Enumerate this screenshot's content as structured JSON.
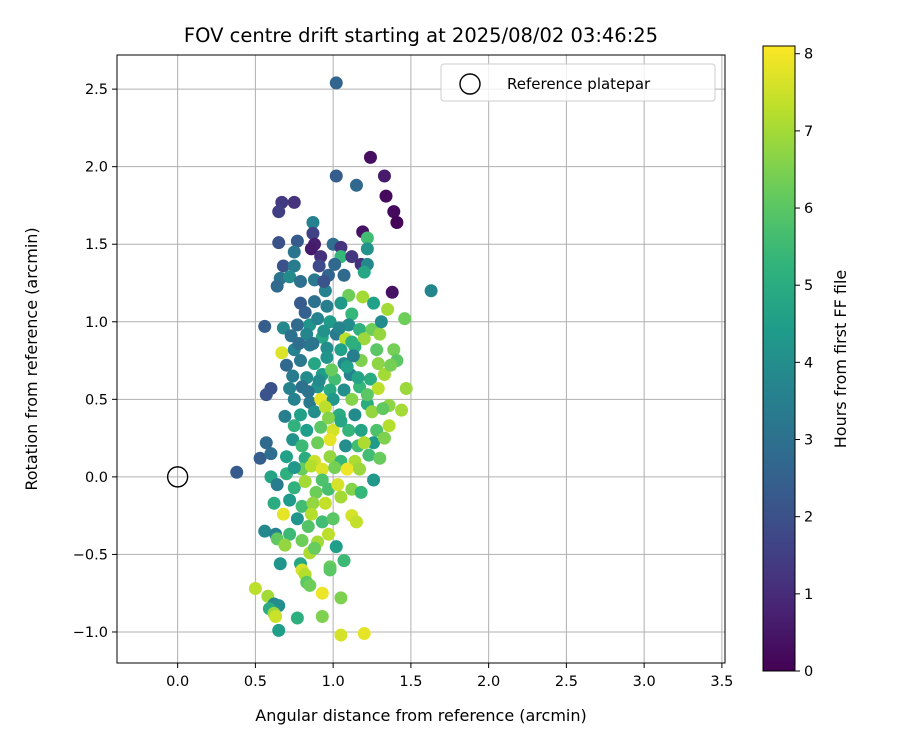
{
  "chart_data": {
    "type": "scatter",
    "title": "FOV centre drift starting at 2025/08/02 03:46:25",
    "xlabel": "Angular distance from reference (arcmin)",
    "ylabel": "Rotation from reference (arcmin)",
    "xlim": [
      -0.39,
      3.52
    ],
    "ylim": [
      -1.2,
      2.72
    ],
    "xticks": [
      0.0,
      0.5,
      1.0,
      1.5,
      2.0,
      2.5,
      3.0,
      3.5
    ],
    "xtick_labels": [
      "0.0",
      "0.5",
      "1.0",
      "1.5",
      "2.0",
      "2.5",
      "3.0",
      "3.5"
    ],
    "yticks": [
      -1.0,
      -0.5,
      0.0,
      0.5,
      1.0,
      1.5,
      2.0,
      2.5
    ],
    "ytick_labels": [
      "−1.0",
      "−0.5",
      "0.0",
      "0.5",
      "1.0",
      "1.5",
      "2.0",
      "2.5"
    ],
    "grid": true,
    "legend": {
      "label": "Reference platepar",
      "placement": "top-right"
    },
    "reference_point": {
      "x": 0.0,
      "y": 0.0
    },
    "colormap": "viridis",
    "colorbar": {
      "label": "Hours from first FF file",
      "range": [
        0,
        8.1
      ],
      "ticks": [
        0,
        1,
        2,
        3,
        4,
        5,
        6,
        7,
        8
      ],
      "tick_labels": [
        "0",
        "1",
        "2",
        "3",
        "4",
        "5",
        "6",
        "7",
        "8"
      ]
    },
    "series": [
      {
        "points": [
          [
            1.02,
            2.54,
            2.6
          ],
          [
            1.24,
            2.06,
            0.3
          ],
          [
            1.33,
            1.94,
            0.6
          ],
          [
            1.02,
            1.94,
            2.4
          ],
          [
            1.15,
            1.88,
            2.7
          ],
          [
            1.34,
            1.81,
            0.2
          ],
          [
            1.39,
            1.71,
            0.2
          ],
          [
            1.41,
            1.64,
            0.1
          ],
          [
            0.67,
            1.77,
            1.4
          ],
          [
            0.75,
            1.77,
            1.2
          ],
          [
            0.65,
            1.71,
            1.5
          ],
          [
            0.87,
            1.64,
            3.6
          ],
          [
            1.19,
            1.58,
            0.4
          ],
          [
            0.87,
            1.57,
            1.6
          ],
          [
            1.22,
            1.54,
            5.6
          ],
          [
            0.65,
            1.51,
            2.0
          ],
          [
            0.77,
            1.52,
            2.3
          ],
          [
            0.88,
            1.5,
            0.7
          ],
          [
            1.0,
            1.5,
            2.9
          ],
          [
            1.05,
            1.48,
            1.2
          ],
          [
            1.22,
            1.47,
            4.1
          ],
          [
            0.86,
            1.47,
            0.6
          ],
          [
            0.75,
            1.45,
            3.2
          ],
          [
            1.05,
            1.42,
            5.4
          ],
          [
            0.92,
            1.42,
            1.1
          ],
          [
            1.12,
            1.42,
            1.3
          ],
          [
            0.68,
            1.36,
            2.0
          ],
          [
            0.75,
            1.36,
            3.4
          ],
          [
            0.91,
            1.36,
            1.8
          ],
          [
            1.18,
            1.37,
            1.1
          ],
          [
            1.22,
            1.37,
            3.8
          ],
          [
            0.66,
            1.28,
            3.1
          ],
          [
            0.72,
            1.29,
            3.9
          ],
          [
            0.79,
            1.26,
            3.0
          ],
          [
            0.88,
            1.27,
            3.3
          ],
          [
            0.97,
            1.3,
            2.6
          ],
          [
            1.07,
            1.3,
            2.8
          ],
          [
            1.2,
            1.32,
            4.8
          ],
          [
            0.64,
            1.23,
            2.8
          ],
          [
            1.38,
            1.19,
            0.4
          ],
          [
            1.63,
            1.2,
            3.7
          ],
          [
            1.1,
            1.17,
            6.3
          ],
          [
            1.19,
            1.16,
            7.0
          ],
          [
            0.79,
            1.12,
            2.3
          ],
          [
            0.88,
            1.13,
            3.0
          ],
          [
            0.96,
            1.1,
            3.5
          ],
          [
            1.05,
            1.12,
            4.3
          ],
          [
            1.26,
            1.12,
            4.6
          ],
          [
            1.12,
            1.05,
            5.4
          ],
          [
            1.35,
            1.08,
            7.0
          ],
          [
            1.46,
            1.02,
            6.3
          ],
          [
            0.56,
            0.97,
            2.4
          ],
          [
            0.68,
            0.96,
            3.8
          ],
          [
            0.77,
            0.98,
            2.8
          ],
          [
            0.85,
            0.98,
            4.2
          ],
          [
            0.9,
            1.02,
            3.6
          ],
          [
            0.98,
            1.0,
            4.4
          ],
          [
            1.1,
            0.98,
            3.9
          ],
          [
            1.17,
            0.95,
            5.2
          ],
          [
            1.25,
            0.95,
            6.3
          ],
          [
            1.3,
            0.92,
            6.8
          ],
          [
            0.73,
            0.91,
            3.0
          ],
          [
            0.83,
            0.92,
            3.7
          ],
          [
            0.93,
            0.9,
            4.8
          ],
          [
            1.02,
            0.92,
            3.3
          ],
          [
            1.08,
            0.89,
            7.3
          ],
          [
            1.2,
            0.89,
            6.9
          ],
          [
            0.67,
            0.8,
            7.7
          ],
          [
            0.75,
            0.82,
            3.6
          ],
          [
            0.85,
            0.85,
            3.4
          ],
          [
            0.96,
            0.83,
            4.0
          ],
          [
            1.05,
            0.82,
            4.6
          ],
          [
            1.14,
            0.84,
            5.0
          ],
          [
            1.28,
            0.82,
            6.0
          ],
          [
            1.39,
            0.82,
            6.4
          ],
          [
            0.7,
            0.72,
            2.7
          ],
          [
            0.79,
            0.75,
            3.3
          ],
          [
            0.88,
            0.73,
            4.8
          ],
          [
            0.96,
            0.77,
            4.2
          ],
          [
            1.07,
            0.73,
            3.8
          ],
          [
            1.18,
            0.75,
            6.5
          ],
          [
            1.29,
            0.73,
            6.7
          ],
          [
            1.41,
            0.75,
            6.0
          ],
          [
            0.74,
            0.65,
            3.4
          ],
          [
            0.83,
            0.64,
            3.9
          ],
          [
            0.93,
            0.66,
            4.5
          ],
          [
            1.01,
            0.63,
            5.6
          ],
          [
            1.11,
            0.66,
            3.6
          ],
          [
            1.24,
            0.63,
            5.0
          ],
          [
            1.33,
            0.66,
            7.0
          ],
          [
            0.6,
            0.57,
            2.0
          ],
          [
            0.72,
            0.57,
            3.6
          ],
          [
            0.8,
            0.58,
            3.0
          ],
          [
            0.9,
            0.58,
            4.2
          ],
          [
            0.98,
            0.56,
            4.9
          ],
          [
            1.07,
            0.56,
            4.0
          ],
          [
            1.17,
            0.58,
            5.4
          ],
          [
            1.29,
            0.57,
            7.3
          ],
          [
            1.47,
            0.57,
            6.9
          ],
          [
            0.57,
            0.53,
            2.1
          ],
          [
            0.75,
            0.5,
            3.6
          ],
          [
            0.85,
            0.48,
            3.3
          ],
          [
            0.92,
            0.5,
            7.8
          ],
          [
            1.0,
            0.5,
            4.3
          ],
          [
            1.12,
            0.5,
            6.6
          ],
          [
            1.22,
            0.47,
            5.0
          ],
          [
            1.36,
            0.46,
            6.7
          ],
          [
            0.69,
            0.39,
            3.5
          ],
          [
            0.79,
            0.4,
            4.6
          ],
          [
            0.88,
            0.42,
            4.0
          ],
          [
            0.95,
            0.45,
            7.3
          ],
          [
            1.04,
            0.4,
            5.0
          ],
          [
            1.14,
            0.4,
            3.9
          ],
          [
            1.25,
            0.42,
            6.8
          ],
          [
            1.32,
            0.44,
            6.1
          ],
          [
            1.44,
            0.43,
            7.0
          ],
          [
            0.75,
            0.33,
            5.2
          ],
          [
            0.83,
            0.3,
            4.5
          ],
          [
            0.92,
            0.32,
            6.0
          ],
          [
            1.0,
            0.3,
            7.6
          ],
          [
            1.1,
            0.3,
            5.3
          ],
          [
            1.18,
            0.3,
            4.7
          ],
          [
            1.28,
            0.3,
            5.8
          ],
          [
            1.36,
            0.33,
            7.2
          ],
          [
            0.57,
            0.22,
            2.8
          ],
          [
            0.74,
            0.24,
            4.1
          ],
          [
            0.8,
            0.2,
            5.5
          ],
          [
            0.9,
            0.22,
            6.3
          ],
          [
            0.98,
            0.24,
            7.8
          ],
          [
            1.08,
            0.2,
            4.0
          ],
          [
            1.16,
            0.2,
            5.6
          ],
          [
            1.26,
            0.22,
            4.4
          ],
          [
            1.33,
            0.25,
            6.5
          ],
          [
            0.53,
            0.12,
            2.4
          ],
          [
            0.6,
            0.15,
            2.9
          ],
          [
            0.7,
            0.13,
            4.6
          ],
          [
            0.82,
            0.12,
            5.0
          ],
          [
            0.88,
            0.1,
            7.5
          ],
          [
            0.98,
            0.13,
            6.8
          ],
          [
            1.05,
            0.1,
            5.4
          ],
          [
            1.14,
            0.1,
            7.1
          ],
          [
            1.23,
            0.14,
            5.6
          ],
          [
            1.3,
            0.12,
            6.2
          ],
          [
            0.38,
            0.03,
            2.3
          ],
          [
            0.6,
            0.0,
            4.7
          ],
          [
            0.7,
            0.02,
            5.1
          ],
          [
            0.8,
            0.05,
            6.2
          ],
          [
            0.86,
            0.07,
            7.2
          ],
          [
            0.93,
            0.05,
            7.7
          ],
          [
            1.01,
            0.06,
            6.4
          ],
          [
            1.09,
            0.05,
            7.9
          ],
          [
            1.17,
            0.05,
            6.9
          ],
          [
            0.64,
            -0.05,
            3.4
          ],
          [
            0.75,
            -0.07,
            5.2
          ],
          [
            0.82,
            -0.03,
            7.0
          ],
          [
            0.89,
            -0.1,
            6.3
          ],
          [
            0.97,
            -0.08,
            5.7
          ],
          [
            1.03,
            -0.05,
            7.6
          ],
          [
            1.12,
            -0.08,
            6.6
          ],
          [
            1.26,
            -0.02,
            4.3
          ],
          [
            0.62,
            -0.17,
            5.0
          ],
          [
            0.72,
            -0.15,
            4.4
          ],
          [
            0.8,
            -0.19,
            5.6
          ],
          [
            0.87,
            -0.17,
            6.8
          ],
          [
            0.95,
            -0.17,
            7.4
          ],
          [
            1.05,
            -0.13,
            7.0
          ],
          [
            1.18,
            -0.1,
            5.4
          ],
          [
            0.68,
            -0.24,
            7.8
          ],
          [
            0.77,
            -0.27,
            4.2
          ],
          [
            0.86,
            -0.24,
            7.2
          ],
          [
            0.93,
            -0.29,
            5.6
          ],
          [
            1.0,
            -0.27,
            6.0
          ],
          [
            1.12,
            -0.25,
            7.6
          ],
          [
            1.15,
            -0.29,
            7.4
          ],
          [
            0.56,
            -0.35,
            3.8
          ],
          [
            0.63,
            -0.37,
            3.6
          ],
          [
            0.64,
            -0.4,
            6.1
          ],
          [
            0.72,
            -0.37,
            5.5
          ],
          [
            0.8,
            -0.41,
            6.3
          ],
          [
            0.9,
            -0.42,
            7.0
          ],
          [
            0.97,
            -0.37,
            7.3
          ],
          [
            1.02,
            -0.45,
            4.5
          ],
          [
            0.69,
            -0.44,
            6.8
          ],
          [
            0.85,
            -0.49,
            7.1
          ],
          [
            0.88,
            -0.46,
            6.2
          ],
          [
            0.66,
            -0.56,
            4.2
          ],
          [
            0.79,
            -0.56,
            4.8
          ],
          [
            1.07,
            -0.54,
            5.5
          ],
          [
            0.8,
            -0.6,
            7.6
          ],
          [
            0.82,
            -0.63,
            7.2
          ],
          [
            0.98,
            -0.58,
            6.2
          ],
          [
            0.98,
            -0.6,
            6.0
          ],
          [
            0.5,
            -0.72,
            7.3
          ],
          [
            0.83,
            -0.68,
            6.0
          ],
          [
            0.85,
            -0.7,
            6.3
          ],
          [
            0.93,
            -0.75,
            7.9
          ],
          [
            0.58,
            -0.77,
            7.0
          ],
          [
            0.62,
            -0.82,
            3.8
          ],
          [
            0.65,
            -0.83,
            4.0
          ],
          [
            1.05,
            -0.78,
            6.5
          ],
          [
            0.59,
            -0.85,
            5.0
          ],
          [
            0.62,
            -0.88,
            6.9
          ],
          [
            0.63,
            -0.9,
            7.5
          ],
          [
            0.77,
            -0.91,
            5.1
          ],
          [
            0.93,
            -0.9,
            6.5
          ],
          [
            0.65,
            -0.99,
            4.5
          ],
          [
            1.05,
            -1.02,
            7.6
          ],
          [
            1.2,
            -1.01,
            7.8
          ],
          [
            0.94,
            0.94,
            4.1
          ],
          [
            1.04,
            0.96,
            3.7
          ],
          [
            1.09,
            0.71,
            4.6
          ],
          [
            0.99,
            0.69,
            6.2
          ],
          [
            0.87,
            0.86,
            3.2
          ],
          [
            0.78,
            0.86,
            2.9
          ],
          [
            1.16,
            0.64,
            4.7
          ],
          [
            1.22,
            0.53,
            6.0
          ],
          [
            0.91,
            0.62,
            3.9
          ],
          [
            0.97,
            0.38,
            6.6
          ],
          [
            1.05,
            0.36,
            4.8
          ],
          [
            0.84,
            0.55,
            3.1
          ],
          [
            1.2,
            0.22,
            7.1
          ],
          [
            0.75,
            0.06,
            4.3
          ],
          [
            0.93,
            -0.02,
            5.8
          ],
          [
            0.84,
            -0.32,
            5.9
          ],
          [
            1.31,
            1.0,
            3.9
          ],
          [
            0.82,
            1.06,
            2.5
          ],
          [
            0.95,
            1.2,
            3.6
          ],
          [
            1.13,
            0.78,
            3.5
          ],
          [
            1.12,
            0.87,
            5.1
          ],
          [
            1.37,
            0.72,
            6.4
          ],
          [
            0.94,
            1.26,
            2.1
          ],
          [
            1.01,
            1.37,
            2.7
          ]
        ]
      }
    ]
  }
}
